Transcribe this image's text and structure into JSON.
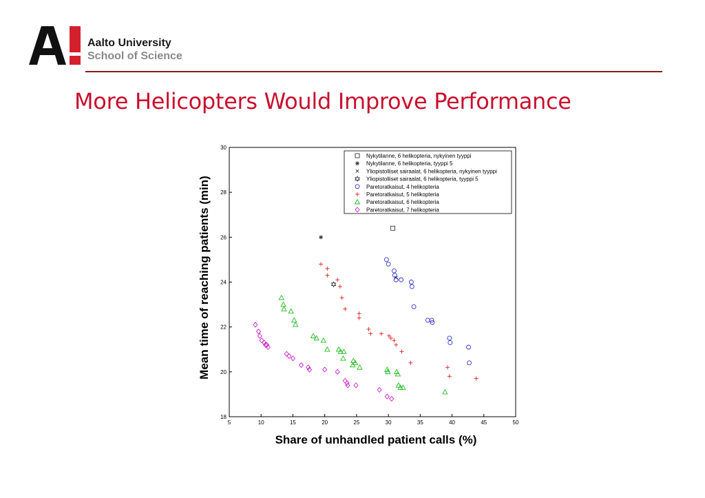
{
  "slide": {
    "title": "More Helicopters Would Improve Performance",
    "logo": {
      "line1": "Aalto University",
      "line2": "School of Science",
      "mark": "A!"
    }
  },
  "colors": {
    "title": "#c8102e",
    "divider": "#8b1a1a",
    "nykytilanne": "#333333",
    "pareto4": "#3333cc",
    "pareto5": "#dd2222",
    "pareto6": "#22bb22",
    "pareto7": "#cc22cc"
  },
  "chart_data": {
    "type": "scatter",
    "xlabel": "Share of unhandled patient calls (%)",
    "ylabel": "Mean time of reaching patients (min)",
    "xlim": [
      5,
      50
    ],
    "ylim": [
      18,
      30
    ],
    "xticks": [
      "5",
      "10",
      "15",
      "20",
      "25",
      "30",
      "35",
      "40",
      "45",
      "50"
    ],
    "yticks": [
      "18",
      "20",
      "22",
      "24",
      "26",
      "28",
      "30"
    ],
    "grid": false,
    "legend_position": "top-right",
    "series": [
      {
        "name": "Nykytilanne, 6 helikopteria, nykyinen tyyppi",
        "marker": "square",
        "color": "#333333",
        "points": [
          [
            30.7,
            26.4
          ]
        ]
      },
      {
        "name": "Nykytilanne, 6 helikopteria, tyyppi 5",
        "marker": "star",
        "color": "#333333",
        "points": [
          [
            19.4,
            26.0
          ]
        ]
      },
      {
        "name": "Yliopistolliset sairaalat, 6 helikopteria, nykyinen tyyppi",
        "marker": "x",
        "color": "#333333",
        "points": [
          [
            31.2,
            24.2
          ]
        ]
      },
      {
        "name": "Yliopistolliset sairaalat, 6 helikopteria, tyyppi 5",
        "marker": "hexagram",
        "color": "#333333",
        "points": [
          [
            21.4,
            23.9
          ]
        ]
      },
      {
        "name": "Paretoratkaisut, 4 helikopteria",
        "marker": "circle",
        "color": "#3333cc",
        "points": [
          [
            29.7,
            25.0
          ],
          [
            30.0,
            24.8
          ],
          [
            30.9,
            24.5
          ],
          [
            31.0,
            24.3
          ],
          [
            31.2,
            24.1
          ],
          [
            32.0,
            24.1
          ],
          [
            33.6,
            24.0
          ],
          [
            33.7,
            23.8
          ],
          [
            34.0,
            22.9
          ],
          [
            36.2,
            22.3
          ],
          [
            36.8,
            22.3
          ],
          [
            36.9,
            22.2
          ],
          [
            39.6,
            21.5
          ],
          [
            39.7,
            21.3
          ],
          [
            42.6,
            21.1
          ],
          [
            42.7,
            20.4
          ]
        ]
      },
      {
        "name": "Paretoratkaisut, 5 helikopteria",
        "marker": "plus",
        "color": "#dd2222",
        "points": [
          [
            19.4,
            24.8
          ],
          [
            20.4,
            24.6
          ],
          [
            20.4,
            24.3
          ],
          [
            22.0,
            24.1
          ],
          [
            22.4,
            23.8
          ],
          [
            22.7,
            23.3
          ],
          [
            23.2,
            22.8
          ],
          [
            25.4,
            22.6
          ],
          [
            25.4,
            22.4
          ],
          [
            26.9,
            21.9
          ],
          [
            27.2,
            21.7
          ],
          [
            28.9,
            21.7
          ],
          [
            30.1,
            21.6
          ],
          [
            30.4,
            21.5
          ],
          [
            30.9,
            21.4
          ],
          [
            31.2,
            21.2
          ],
          [
            32.1,
            20.9
          ],
          [
            33.5,
            20.4
          ],
          [
            39.3,
            20.2
          ],
          [
            39.6,
            19.8
          ],
          [
            43.8,
            19.7
          ]
        ]
      },
      {
        "name": "Paretoratkaisut, 6 helikopteria",
        "marker": "triangle",
        "color": "#22bb22",
        "points": [
          [
            13.2,
            23.3
          ],
          [
            13.5,
            23.0
          ],
          [
            13.6,
            22.8
          ],
          [
            14.7,
            22.7
          ],
          [
            15.2,
            22.3
          ],
          [
            15.4,
            22.1
          ],
          [
            18.2,
            21.6
          ],
          [
            18.7,
            21.5
          ],
          [
            19.8,
            21.4
          ],
          [
            20.4,
            21.0
          ],
          [
            22.2,
            21.0
          ],
          [
            22.5,
            20.9
          ],
          [
            23.0,
            20.9
          ],
          [
            22.9,
            20.6
          ],
          [
            24.5,
            20.5
          ],
          [
            24.4,
            20.3
          ],
          [
            24.8,
            20.4
          ],
          [
            25.5,
            20.2
          ],
          [
            29.8,
            20.1
          ],
          [
            29.9,
            20.0
          ],
          [
            31.3,
            20.0
          ],
          [
            31.5,
            19.9
          ],
          [
            31.6,
            19.4
          ],
          [
            31.9,
            19.3
          ],
          [
            32.3,
            19.3
          ],
          [
            38.9,
            19.1
          ]
        ]
      },
      {
        "name": "Paretoratkaisut, 7 helikopteria",
        "marker": "diamond",
        "color": "#cc22cc",
        "points": [
          [
            9.1,
            22.1
          ],
          [
            9.6,
            21.8
          ],
          [
            9.8,
            21.6
          ],
          [
            10.1,
            21.4
          ],
          [
            10.5,
            21.3
          ],
          [
            10.7,
            21.2
          ],
          [
            10.9,
            21.2
          ],
          [
            11.1,
            21.1
          ],
          [
            14.0,
            20.8
          ],
          [
            14.4,
            20.7
          ],
          [
            15.0,
            20.6
          ],
          [
            16.3,
            20.3
          ],
          [
            17.4,
            20.2
          ],
          [
            17.6,
            20.1
          ],
          [
            20.0,
            20.1
          ],
          [
            22.0,
            20.0
          ],
          [
            23.2,
            19.6
          ],
          [
            23.5,
            19.5
          ],
          [
            23.6,
            19.4
          ],
          [
            24.9,
            19.4
          ],
          [
            28.6,
            19.2
          ],
          [
            29.8,
            18.9
          ],
          [
            30.5,
            18.8
          ]
        ]
      }
    ]
  }
}
